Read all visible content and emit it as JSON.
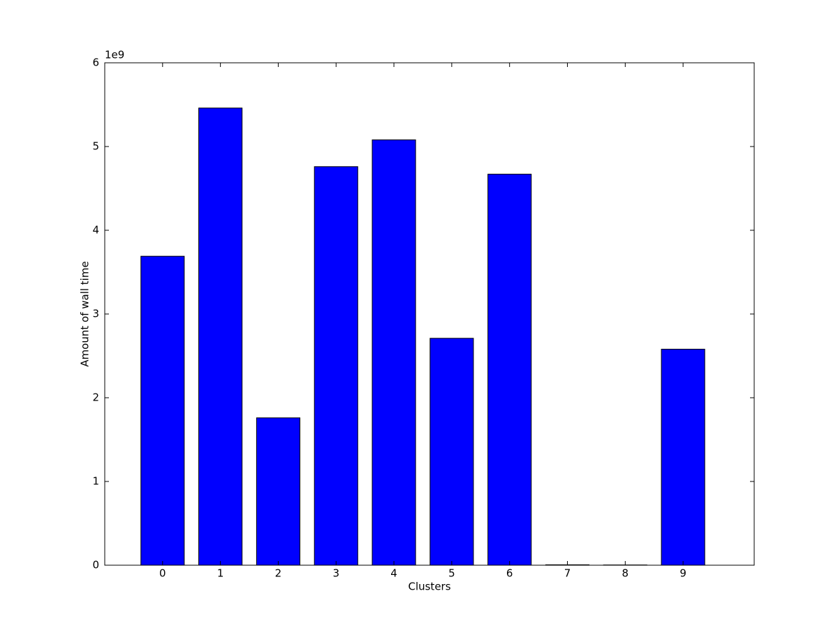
{
  "chart_data": {
    "type": "bar",
    "x_label": "Clusters",
    "y_label": "Amount of wall time",
    "y_offset_label": "1e9",
    "x": [
      0,
      1,
      2,
      3,
      4,
      5,
      6,
      7,
      8,
      9
    ],
    "values": [
      3.69,
      5.46,
      1.76,
      4.76,
      5.08,
      2.71,
      4.67,
      0.005,
      0.003,
      2.58
    ],
    "color": "#0000ff",
    "edge_color": "#000000",
    "xlim": [
      -1,
      10.23
    ],
    "xticks": [
      0,
      1,
      2,
      3,
      4,
      5,
      6,
      7,
      8,
      9
    ],
    "ylim": [
      0,
      6
    ],
    "yticks": [
      0,
      1,
      2,
      3,
      4,
      5,
      6
    ],
    "grid": false
  }
}
